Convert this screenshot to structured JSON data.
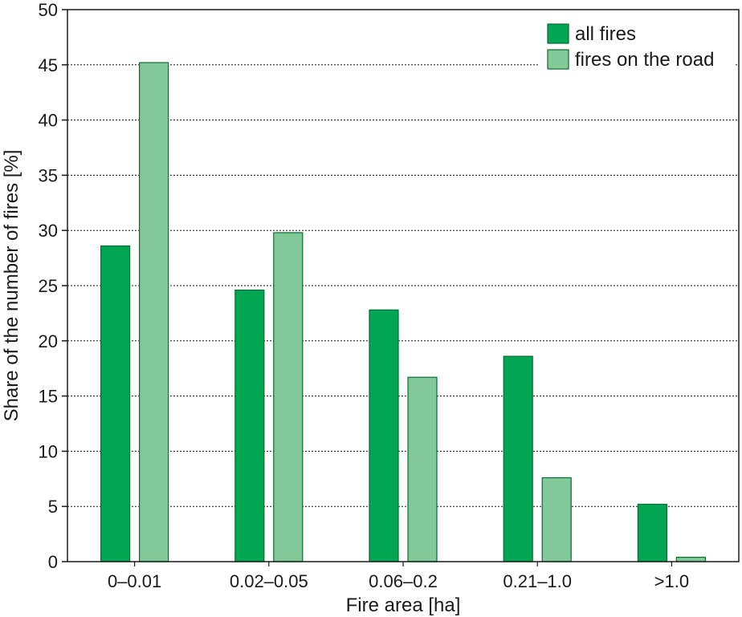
{
  "chart_data": {
    "type": "bar",
    "categories": [
      "0–0.01",
      "0.02–0.05",
      "0.06–0.2",
      "0.21–1.0",
      ">1.0"
    ],
    "series": [
      {
        "name": "all fires",
        "values": [
          28.6,
          24.6,
          22.8,
          18.6,
          5.2
        ],
        "color": "#00a651"
      },
      {
        "name": "fires on the road",
        "values": [
          45.2,
          29.8,
          16.7,
          7.6,
          0.4
        ],
        "color": "#82c99a"
      }
    ],
    "title": "",
    "xlabel": "Fire area [ha]",
    "ylabel": "Share of the number of fires [%]",
    "ylim": [
      0,
      50
    ],
    "yticks": [
      0,
      5,
      10,
      15,
      20,
      25,
      30,
      35,
      40,
      45,
      50
    ],
    "grid": "horizontal-dotted",
    "legend": "top-right"
  }
}
